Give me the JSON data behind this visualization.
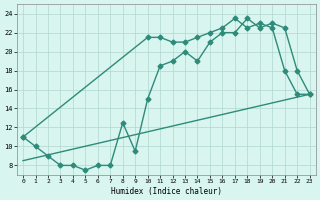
{
  "line1_x": [
    0,
    1,
    2,
    3,
    4,
    5,
    6,
    7,
    8,
    9,
    10,
    11,
    12,
    13,
    14,
    15,
    16,
    17,
    18,
    19,
    20,
    21,
    22,
    23
  ],
  "line1_y": [
    11,
    10,
    9,
    8,
    8,
    7.5,
    8,
    8,
    12.5,
    9.5,
    15,
    18.5,
    19,
    20,
    19,
    21,
    22,
    22,
    23.5,
    22.5,
    23,
    22.5,
    18,
    15.5
  ],
  "line2_x": [
    0,
    10,
    11,
    12,
    13,
    14,
    15,
    16,
    17,
    18,
    19,
    20,
    21,
    22,
    23
  ],
  "line2_y": [
    11,
    21.5,
    21.5,
    21,
    21,
    21.5,
    22,
    22.5,
    23.5,
    22.5,
    23,
    22.5,
    18,
    15.5,
    15.5
  ],
  "line3_x": [
    0,
    23
  ],
  "line3_y": [
    8.5,
    15.5
  ],
  "color": "#2e8b7a",
  "bg_color": "#d8f5ef",
  "grid_color": "#b0d8d0",
  "xlabel": "Humidex (Indice chaleur)",
  "xlim": [
    -0.5,
    23.5
  ],
  "ylim": [
    7,
    25
  ],
  "xticks": [
    0,
    1,
    2,
    3,
    4,
    5,
    6,
    7,
    8,
    9,
    10,
    11,
    12,
    13,
    14,
    15,
    16,
    17,
    18,
    19,
    20,
    21,
    22,
    23
  ],
  "yticks": [
    8,
    10,
    12,
    14,
    16,
    18,
    20,
    22,
    24
  ],
  "marker": "D",
  "markersize": 2.5,
  "linewidth": 1.0
}
